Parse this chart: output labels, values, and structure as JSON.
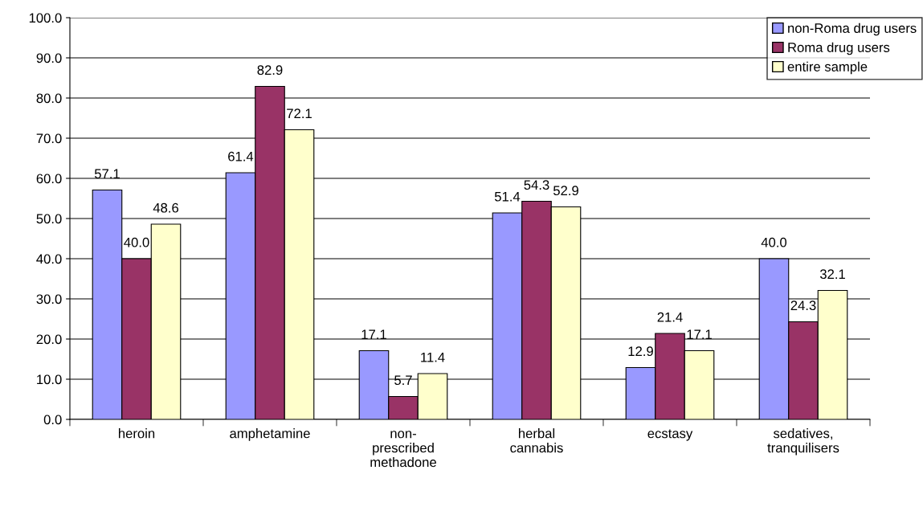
{
  "chart_data": {
    "type": "bar",
    "categories": [
      "heroin",
      "amphetamine",
      "non-\nprescribed\nmethadone",
      "herbal\ncannabis",
      "ecstasy",
      "sedatives,\ntranquilisers"
    ],
    "series": [
      {
        "name": "non-Roma drug users",
        "color": "#9999ff",
        "values": [
          57.1,
          61.4,
          17.1,
          51.4,
          12.9,
          40.0
        ],
        "value_labels": [
          "57.1",
          "61.4",
          "17.1",
          "51.4",
          "12.9",
          "40.0"
        ]
      },
      {
        "name": "Roma drug users",
        "color": "#993366",
        "values": [
          40.0,
          82.9,
          5.7,
          54.3,
          21.4,
          24.3
        ],
        "value_labels": [
          "40.0",
          "82.9",
          "5.7",
          "54.3",
          "21.4",
          "24.3"
        ]
      },
      {
        "name": "entire sample",
        "color": "#ffffcc",
        "values": [
          48.6,
          72.1,
          11.4,
          52.9,
          17.1,
          32.1
        ],
        "value_labels": [
          "48.6",
          "72.1",
          "11.4",
          "52.9",
          "17.1",
          "32.1"
        ]
      }
    ],
    "ylim": [
      0,
      100
    ],
    "yticks": [
      {
        "value": 0,
        "label": "0.0"
      },
      {
        "value": 10,
        "label": "10.0"
      },
      {
        "value": 20,
        "label": "20.0"
      },
      {
        "value": 30,
        "label": "30.0"
      },
      {
        "value": 40,
        "label": "40.0"
      },
      {
        "value": 50,
        "label": "50.0"
      },
      {
        "value": 60,
        "label": "60.0"
      },
      {
        "value": 70,
        "label": "70.0"
      },
      {
        "value": 80,
        "label": "80.0"
      },
      {
        "value": 90,
        "label": "90.0"
      },
      {
        "value": 100,
        "label": "100.0"
      }
    ],
    "grid": "y",
    "legend": "top right"
  }
}
